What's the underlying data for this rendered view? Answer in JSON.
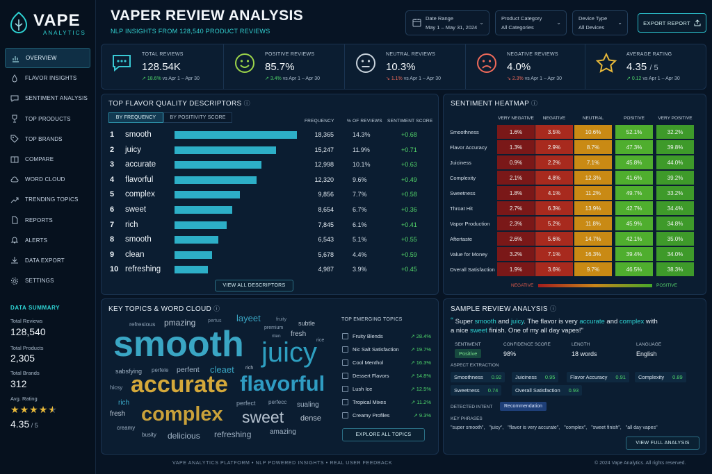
{
  "brand": {
    "name": "VAPE",
    "sub": "ANALYTICS"
  },
  "nav": [
    {
      "label": "OVERVIEW",
      "icon": "chart-icon",
      "active": true
    },
    {
      "label": "FLAVOR INSIGHTS",
      "icon": "drop-icon"
    },
    {
      "label": "SENTIMENT ANALYSIS",
      "icon": "chat-icon"
    },
    {
      "label": "TOP PRODUCTS",
      "icon": "trophy-icon"
    },
    {
      "label": "TOP BRANDS",
      "icon": "tag-icon"
    },
    {
      "label": "COMPARE",
      "icon": "compare-icon"
    },
    {
      "label": "WORD CLOUD",
      "icon": "cloud-icon"
    },
    {
      "label": "TRENDING TOPICS",
      "icon": "trend-icon"
    },
    {
      "label": "REPORTS",
      "icon": "document-icon"
    },
    {
      "label": "ALERTS",
      "icon": "bell-icon"
    },
    {
      "label": "DATA EXPORT",
      "icon": "download-icon"
    },
    {
      "label": "SETTINGS",
      "icon": "gear-icon"
    }
  ],
  "data_summary": {
    "title": "DATA SUMMARY",
    "total_reviews_label": "Total Reviews",
    "total_reviews": "128,540",
    "total_products_label": "Total Products",
    "total_products": "2,305",
    "total_brands_label": "Total Brands",
    "total_brands": "312",
    "avg_rating_label": "Avg. Rating",
    "avg_rating": "4.35",
    "avg_rating_max": "/ 5",
    "stars": 4.35
  },
  "header": {
    "title": "VAPER REVIEW ANALYSIS",
    "subtitle": "NLP INSIGHTS FROM 128,540 PRODUCT REVIEWS"
  },
  "filters": [
    {
      "label": "Date Range",
      "value": "May 1 – May 31, 2024"
    },
    {
      "label": "Product Category",
      "value": "All Categories"
    },
    {
      "label": "Device Type",
      "value": "All Devices"
    }
  ],
  "export_label": "EXPORT REPORT",
  "kpis": [
    {
      "label": "TOTAL REVIEWS",
      "value": "128.54K",
      "change": "18.6%",
      "dir": "up",
      "vs": "vs Apr 1 – Apr 30",
      "icon": "chat-bubble-icon",
      "color": "#39c9d4"
    },
    {
      "label": "POSITIVE REVIEWS",
      "value": "85.7%",
      "change": "3.4%",
      "dir": "up",
      "vs": "vs Apr 1 – Apr 30",
      "icon": "smile-icon",
      "color": "#9bd34a"
    },
    {
      "label": "NEUTRAL REVIEWS",
      "value": "10.3%",
      "change": "1.1%",
      "dir": "down",
      "vs": "vs Apr 1 – Apr 30",
      "icon": "neutral-face-icon",
      "color": "#c9d3dc"
    },
    {
      "label": "NEGATIVE REVIEWS",
      "value": "4.0%",
      "change": "2.3%",
      "dir": "down",
      "vs": "vs Apr 1 – Apr 30",
      "icon": "sad-face-icon",
      "color": "#ef6a5a"
    },
    {
      "label": "AVERAGE RATING",
      "value": "4.35",
      "value_suffix": "/ 5",
      "change": "0.12",
      "dir": "up",
      "vs": "vs Apr 1 – Apr 30",
      "icon": "star-icon",
      "color": "#e8b93a"
    }
  ],
  "descriptors": {
    "title": "TOP FLAVOR QUALITY DESCRIPTORS",
    "tabs": [
      "BY FREQUENCY",
      "BY POSITIVITY SCORE"
    ],
    "headers": [
      "FREQUENCY",
      "% OF REVIEWS",
      "SENTIMENT SCORE"
    ],
    "rows": [
      {
        "rank": "1",
        "word": "smooth",
        "freq": "18,365",
        "freq_n": 18365,
        "pct": "14.3%",
        "sent": "+0.68"
      },
      {
        "rank": "2",
        "word": "juicy",
        "freq": "15,247",
        "freq_n": 15247,
        "pct": "11.9%",
        "sent": "+0.71"
      },
      {
        "rank": "3",
        "word": "accurate",
        "freq": "12,998",
        "freq_n": 12998,
        "pct": "10.1%",
        "sent": "+0.63"
      },
      {
        "rank": "4",
        "word": "flavorful",
        "freq": "12,320",
        "freq_n": 12320,
        "pct": "9.6%",
        "sent": "+0.49"
      },
      {
        "rank": "5",
        "word": "complex",
        "freq": "9,856",
        "freq_n": 9856,
        "pct": "7.7%",
        "sent": "+0.58"
      },
      {
        "rank": "6",
        "word": "sweet",
        "freq": "8,654",
        "freq_n": 8654,
        "pct": "6.7%",
        "sent": "+0.36"
      },
      {
        "rank": "7",
        "word": "rich",
        "freq": "7,845",
        "freq_n": 7845,
        "pct": "6.1%",
        "sent": "+0.41"
      },
      {
        "rank": "8",
        "word": "smooth",
        "freq": "6,543",
        "freq_n": 6543,
        "pct": "5.1%",
        "sent": "+0.55"
      },
      {
        "rank": "9",
        "word": "clean",
        "freq": "5,678",
        "freq_n": 5678,
        "pct": "4.4%",
        "sent": "+0.59"
      },
      {
        "rank": "10",
        "word": "refreshing",
        "freq": "4,987",
        "freq_n": 4987,
        "pct": "3.9%",
        "sent": "+0.45"
      }
    ],
    "view_all": "VIEW ALL DESCRIPTORS"
  },
  "heatmap": {
    "title": "SENTIMENT HEATMAP",
    "columns": [
      "VERY NEGATIVE",
      "NEGATIVE",
      "NEUTRAL",
      "POSITIVE",
      "VERY POSITIVE"
    ],
    "col_colors": [
      "#7a1818",
      "#a82a1e",
      "#c98a14",
      "#4fae2e",
      "#3e9a2a"
    ],
    "rows": [
      {
        "label": "Smoothness",
        "values": [
          "1.6%",
          "3.5%",
          "10.6%",
          "52.1%",
          "32.2%"
        ]
      },
      {
        "label": "Flavor Accuracy",
        "values": [
          "1.3%",
          "2.9%",
          "8.7%",
          "47.3%",
          "39.8%"
        ]
      },
      {
        "label": "Juiciness",
        "values": [
          "0.9%",
          "2.2%",
          "7.1%",
          "45.8%",
          "44.0%"
        ]
      },
      {
        "label": "Complexity",
        "values": [
          "2.1%",
          "4.8%",
          "12.3%",
          "41.6%",
          "39.2%"
        ]
      },
      {
        "label": "Sweetness",
        "values": [
          "1.8%",
          "4.1%",
          "11.2%",
          "49.7%",
          "33.2%"
        ]
      },
      {
        "label": "Throat Hit",
        "values": [
          "2.7%",
          "6.3%",
          "13.9%",
          "42.7%",
          "34.4%"
        ]
      },
      {
        "label": "Vapor Production",
        "values": [
          "2.3%",
          "5.2%",
          "11.8%",
          "45.9%",
          "34.8%"
        ]
      },
      {
        "label": "Aftertaste",
        "values": [
          "2.6%",
          "5.6%",
          "14.7%",
          "42.1%",
          "35.0%"
        ]
      },
      {
        "label": "Value for Money",
        "values": [
          "3.2%",
          "7.1%",
          "16.3%",
          "39.4%",
          "34.0%"
        ]
      },
      {
        "label": "Overall Satisfaction",
        "values": [
          "1.9%",
          "3.6%",
          "9.7%",
          "46.5%",
          "38.3%"
        ]
      }
    ],
    "legend_left": "NEGATIVE",
    "legend_right": "POSITIVE"
  },
  "wordcloud": {
    "title": "KEY TOPICS & WORD CLOUD",
    "words": [
      {
        "t": "smooth",
        "c": "#3aa6c4"
      },
      {
        "t": "juicy",
        "c": "#2e9fc0"
      },
      {
        "t": "accurate",
        "c": "#d4a83a"
      },
      {
        "t": "flavorful",
        "c": "#2f9cc2"
      },
      {
        "t": "complex",
        "c": "#c9a13a"
      },
      {
        "t": "sweet",
        "c": "#b9c5d2"
      },
      {
        "t": "refreshing",
        "c": "#9fb0c2"
      },
      {
        "t": "delicious",
        "c": "#a3b5c7"
      },
      {
        "t": "layeet",
        "c": "#3aa6c4"
      },
      {
        "t": "pmazing",
        "c": "#b9c5d2"
      },
      {
        "t": "refresious",
        "c": "#8fa3b7"
      },
      {
        "t": "pertus",
        "c": "#7c90a4"
      },
      {
        "t": "fruity",
        "c": "#7c90a4"
      },
      {
        "t": "subtle",
        "c": "#b9c5d2"
      },
      {
        "t": "premium",
        "c": "#8fa3b7"
      },
      {
        "t": "riten",
        "c": "#8fa3b7"
      },
      {
        "t": "fresh",
        "c": "#b9c5d2"
      },
      {
        "t": "rice",
        "c": "#8fa3b7"
      },
      {
        "t": "sabsfying",
        "c": "#a3b5c7"
      },
      {
        "t": "perfele",
        "c": "#8fa3b7"
      },
      {
        "t": "perfent",
        "c": "#a3b5c7"
      },
      {
        "t": "cleaet",
        "c": "#3aa6c4"
      },
      {
        "t": "rich",
        "c": "#b9c5d2"
      },
      {
        "t": "hicsy",
        "c": "#8fa3b7"
      },
      {
        "t": "rich",
        "c": "#3aa6c4"
      },
      {
        "t": "perfect",
        "c": "#8fa3b7"
      },
      {
        "t": "perfecc",
        "c": "#8fa3b7"
      },
      {
        "t": "sualing",
        "c": "#a3b5c7"
      },
      {
        "t": "fresh",
        "c": "#b9c5d2"
      },
      {
        "t": "dense",
        "c": "#b9c5d2"
      },
      {
        "t": "creamy",
        "c": "#a3b5c7"
      },
      {
        "t": "busity",
        "c": "#a3b5c7"
      },
      {
        "t": "amazing",
        "c": "#a3b5c7"
      }
    ],
    "topics_title": "TOP EMERGING TOPICS",
    "topics": [
      {
        "label": "Fruity Blends",
        "value": "28.4%"
      },
      {
        "label": "Nic Salt Satisfaction",
        "value": "19.7%"
      },
      {
        "label": "Cool Menthol",
        "value": "16.3%"
      },
      {
        "label": "Dessert Flavors",
        "value": "14.8%"
      },
      {
        "label": "Lush Ice",
        "value": "12.5%"
      },
      {
        "label": "Tropical Mixes",
        "value": "11.2%"
      },
      {
        "label": "Creamy Profiles",
        "value": "9.3%"
      }
    ],
    "explore": "EXPLORE ALL TOPICS"
  },
  "sample": {
    "title": "SAMPLE REVIEW ANALYSIS",
    "quote": [
      "Super ",
      "smooth",
      " and ",
      "juicy",
      ". The flavor is very ",
      "accurate",
      " and ",
      "complex",
      " with a nice ",
      "sweet",
      " finish. One of my all day vapes!\""
    ],
    "sentiment_label": "SENTIMENT",
    "sentiment": "Positive",
    "confidence_label": "CONFIDENCE SCORE",
    "confidence": "98%",
    "length_label": "LENGTH",
    "length": "18 words",
    "language_label": "LANGUAGE",
    "language": "English",
    "aspect_title": "ASPECT EXTRACTION",
    "aspects": [
      {
        "label": "Smoothness",
        "score": "0.92"
      },
      {
        "label": "Juiciness",
        "score": "0.95"
      },
      {
        "label": "Flavor Accuracy",
        "score": "0.91"
      },
      {
        "label": "Complexity",
        "score": "0.89"
      },
      {
        "label": "Sweetness",
        "score": "0.74"
      },
      {
        "label": "Overall Satisfaction",
        "score": "0.93"
      }
    ],
    "intent_label": "DETECTED INTENT",
    "intent": "Recommendation",
    "phrases_label": "KEY PHRASES",
    "phrases": [
      "\"super smooth\",",
      "\"juicy\",",
      "\"flavor is very accurate\",",
      "\"complex\",",
      "\"sweet finish\",",
      "\"all day vapes\""
    ],
    "view_full": "VIEW FULL ANALYSIS"
  },
  "footer": {
    "center": "VAPE ANALYTICS PLATFORM   •   NLP POWERED INSIGHTS   •   REAL USER FEEDBACK",
    "right": "© 2024 Vape Analytics. All rights reserved."
  }
}
